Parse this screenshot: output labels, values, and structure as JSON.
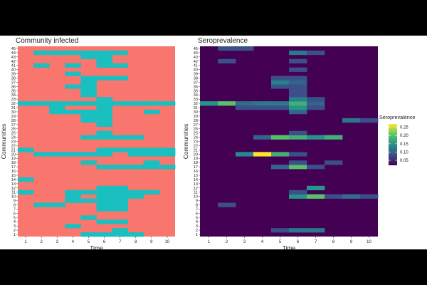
{
  "chart_data": [
    {
      "type": "heatmap",
      "title": "Community infected",
      "xlabel": "Time",
      "ylabel": "Communities",
      "x": [
        1,
        2,
        3,
        4,
        5,
        6,
        7,
        8,
        9,
        10
      ],
      "y_communities": [
        1,
        2,
        3,
        4,
        5,
        6,
        7,
        8,
        9,
        10,
        11,
        12,
        13,
        14,
        15,
        16,
        17,
        18,
        19,
        20,
        21,
        22,
        23,
        24,
        25,
        26,
        27,
        28,
        29,
        30,
        31,
        32,
        33,
        34,
        35,
        36,
        37,
        38,
        39,
        40,
        41,
        42,
        43,
        44,
        45
      ],
      "colors": {
        "infected": "#1ABFC0",
        "not_infected": "#F8766D"
      },
      "infected_cells": {
        "1": [
          5,
          6,
          7,
          8
        ],
        "2": [
          7
        ],
        "3": [
          4
        ],
        "4": [
          6,
          7
        ],
        "5": [
          5
        ],
        "7": [
          6,
          7
        ],
        "8": [
          2,
          3,
          6,
          7
        ],
        "9": [
          4,
          5,
          6,
          7
        ],
        "10": [
          4,
          6,
          7,
          8
        ],
        "11": [
          1,
          4,
          5,
          6,
          7,
          8,
          9
        ],
        "12": [
          6,
          7
        ],
        "14": [
          1
        ],
        "17": [
          6,
          7,
          8,
          9,
          10
        ],
        "18": [
          5,
          9
        ],
        "20": [
          2,
          3,
          4,
          5,
          6,
          8,
          9,
          10
        ],
        "21": [
          1,
          6,
          7,
          8,
          9,
          10
        ],
        "24": [
          5,
          6,
          7,
          8
        ],
        "25": [
          6
        ],
        "27": [
          6
        ],
        "28": [
          5,
          6
        ],
        "29": [
          5,
          6
        ],
        "30": [
          3,
          4,
          5,
          6,
          9
        ],
        "31": [
          3,
          6
        ],
        "32": [
          1,
          2,
          3,
          4,
          5,
          6,
          7,
          8,
          9,
          10
        ],
        "33": [
          6
        ],
        "34": [
          5
        ],
        "35": [
          5
        ],
        "36": [
          4,
          5
        ],
        "37": [
          5
        ],
        "38": [
          5,
          6,
          7
        ],
        "39": [
          4
        ],
        "41": [
          2,
          4,
          6,
          7
        ],
        "42": [
          6
        ],
        "43": [
          5,
          6
        ],
        "44": [
          2,
          3,
          4,
          5,
          6,
          7
        ]
      }
    },
    {
      "type": "heatmap",
      "title": "Seroprevalence",
      "xlabel": "Time",
      "ylabel": "Communities",
      "x": [
        1,
        2,
        3,
        4,
        5,
        6,
        7,
        8,
        9,
        10
      ],
      "y_communities": [
        1,
        2,
        3,
        4,
        5,
        6,
        7,
        8,
        9,
        10,
        11,
        12,
        13,
        14,
        15,
        16,
        17,
        18,
        19,
        20,
        21,
        22,
        23,
        24,
        25,
        26,
        27,
        28,
        29,
        30,
        31,
        32,
        33,
        34,
        35,
        36,
        37,
        38,
        39,
        40,
        41,
        42,
        43,
        44,
        45
      ],
      "legend": {
        "title": "Seroprevalence",
        "ticks": [
          "0.25",
          "0.20",
          "0.15",
          "0.10",
          "0.05"
        ],
        "range": [
          0.02,
          0.27
        ]
      },
      "background_value": 0.02,
      "cells": {
        "2": {
          "5": 0.08,
          "6": 0.12,
          "7": 0.12
        },
        "8": {
          "2": 0.08
        },
        "10": {
          "6": 0.15,
          "7": 0.2,
          "8": 0.08,
          "9": 0.11,
          "10": 0.08
        },
        "11": {
          "6": 0.08
        },
        "12": {
          "7": 0.15
        },
        "17": {
          "5": 0.1,
          "6": 0.2,
          "7": 0.08
        },
        "18": {
          "6": 0.08,
          "8": 0.08
        },
        "20": {
          "3": 0.14,
          "4": 0.27,
          "5": 0.18,
          "6": 0.08
        },
        "24": {
          "4": 0.1,
          "5": 0.2,
          "6": 0.18,
          "7": 0.15,
          "8": 0.18
        },
        "25": {
          "6": 0.08
        },
        "28": {
          "9": 0.12,
          "10": 0.08
        },
        "30": {
          "6": 0.1
        },
        "31": {
          "3": 0.08,
          "4": 0.08,
          "5": 0.08,
          "6": 0.15,
          "7": 0.08
        },
        "32": {
          "1": 0.15,
          "2": 0.2,
          "3": 0.11,
          "4": 0.12,
          "5": 0.12,
          "6": 0.18,
          "7": 0.1
        },
        "33": {
          "6": 0.13,
          "7": 0.08
        },
        "34": {
          "6": 0.08
        },
        "35": {
          "6": 0.08
        },
        "36": {
          "5": 0.08,
          "6": 0.08
        },
        "37": {
          "5": 0.13,
          "6": 0.1
        },
        "38": {
          "5": 0.08,
          "6": 0.08
        },
        "40": {
          "6": 0.08
        },
        "42": {
          "2": 0.08,
          "6": 0.08
        },
        "44": {
          "6": 0.12,
          "7": 0.08
        },
        "45": {
          "2": 0.08,
          "3": 0.08
        }
      }
    }
  ]
}
